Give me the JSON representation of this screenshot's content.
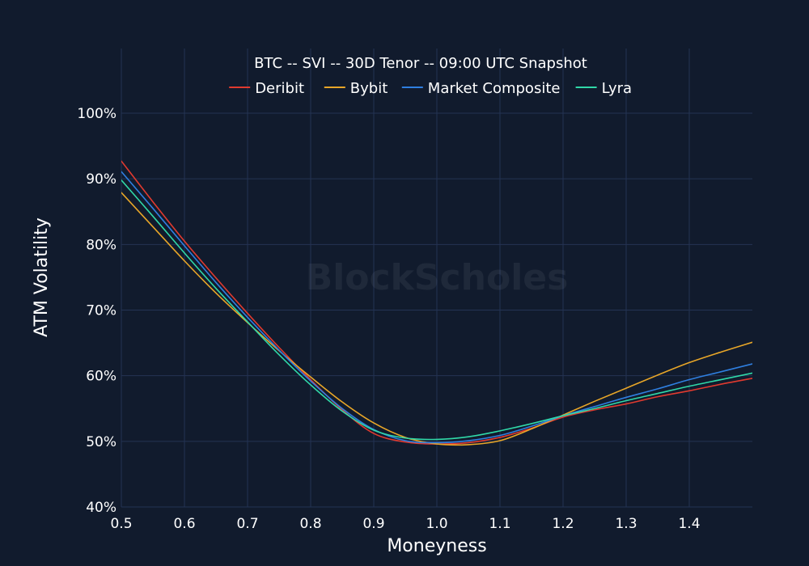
{
  "chart_data": {
    "type": "line",
    "title": "BTC -- SVI -- 30D Tenor -- 09:00 UTC Snapshot",
    "xlabel": "Moneyness",
    "ylabel": "ATM Volatility",
    "xlim": [
      0.5,
      1.5
    ],
    "ylim": [
      40,
      100
    ],
    "x_ticks": [
      0.5,
      0.6,
      0.7,
      0.8,
      0.9,
      1.0,
      1.1,
      1.2,
      1.3,
      1.4
    ],
    "x_tick_labels": [
      "0.5",
      "0.6",
      "0.7",
      "0.8",
      "0.9",
      "1.0",
      "1.1",
      "1.2",
      "1.3",
      "1.4"
    ],
    "y_ticks": [
      40,
      50,
      60,
      70,
      80,
      90,
      100
    ],
    "y_tick_labels": [
      "40%",
      "50%",
      "60%",
      "70%",
      "80%",
      "90%",
      "100%"
    ],
    "grid": true,
    "legend_position": "top-center",
    "watermark": "BlockScholes",
    "x": [
      0.5,
      0.55,
      0.6,
      0.65,
      0.7,
      0.75,
      0.8,
      0.85,
      0.9,
      0.95,
      1.0,
      1.05,
      1.1,
      1.15,
      1.2,
      1.25,
      1.3,
      1.35,
      1.4,
      1.45,
      1.5
    ],
    "series": [
      {
        "name": "Deribit",
        "color": "#e03a2f",
        "values": [
          92.7,
          86.5,
          80.5,
          74.9,
          69.5,
          64.3,
          59.4,
          54.8,
          51.2,
          49.9,
          49.6,
          49.8,
          50.6,
          52.0,
          53.7,
          54.8,
          55.7,
          56.8,
          57.7,
          58.7,
          59.6
        ]
      },
      {
        "name": "Bybit",
        "color": "#e8a628",
        "values": [
          87.9,
          82.7,
          77.5,
          72.6,
          68.1,
          63.8,
          59.8,
          56.0,
          52.8,
          50.6,
          49.6,
          49.5,
          50.1,
          51.9,
          54.0,
          56.1,
          58.1,
          60.1,
          62.0,
          63.6,
          65.1
        ]
      },
      {
        "name": "Market Composite",
        "color": "#2f7fe0",
        "values": [
          91.1,
          85.5,
          79.8,
          74.2,
          68.9,
          63.9,
          59.2,
          55.0,
          51.8,
          50.1,
          49.8,
          50.1,
          50.9,
          52.3,
          53.9,
          55.3,
          56.7,
          58.0,
          59.4,
          60.6,
          61.8
        ]
      },
      {
        "name": "Lyra",
        "color": "#30d8a8",
        "values": [
          89.8,
          84.3,
          78.7,
          73.3,
          68.2,
          63.2,
          58.6,
          54.6,
          51.7,
          50.5,
          50.3,
          50.7,
          51.6,
          52.7,
          53.9,
          55.0,
          56.2,
          57.3,
          58.4,
          59.4,
          60.4
        ]
      }
    ]
  }
}
